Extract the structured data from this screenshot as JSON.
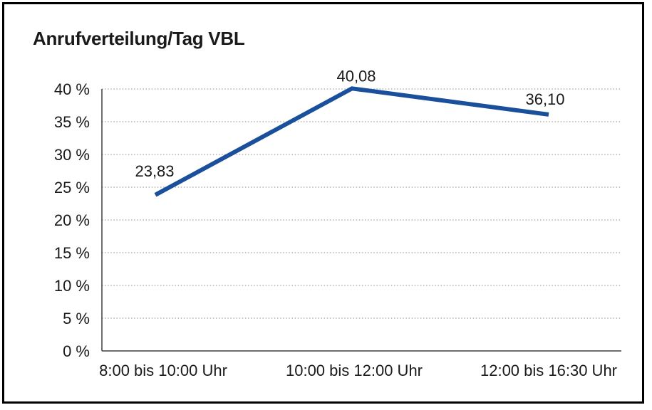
{
  "chart_data": {
    "type": "line",
    "title": "Anrufverteilung/Tag VBL",
    "categories": [
      "8:00 bis 10:00 Uhr",
      "10:00 bis 12:00 Uhr",
      "12:00 bis 16:30 Uhr"
    ],
    "series": [
      {
        "values": [
          23.83,
          40.08,
          36.1
        ],
        "point_labels": [
          "23,83",
          "40,08",
          "36,10"
        ],
        "color": "#1A4F9C"
      }
    ],
    "xlabel": "",
    "ylabel": "",
    "ylim": [
      0,
      40
    ],
    "ytick_step": 5,
    "ytick_suffix": " %",
    "ytick_labels": [
      "0 %",
      "5 %",
      "10 %",
      "15 %",
      "20 %",
      "25 %",
      "30 %",
      "35 %",
      "40 %"
    ],
    "grid": "horizontal-dotted",
    "legend_position": "none"
  },
  "colors": {
    "line": "#1A4F9C",
    "grid": "#A0A0A0",
    "axis": "#3F3F3F",
    "text": "#1A1A1A",
    "border": "#000000",
    "background": "#FFFFFF"
  }
}
